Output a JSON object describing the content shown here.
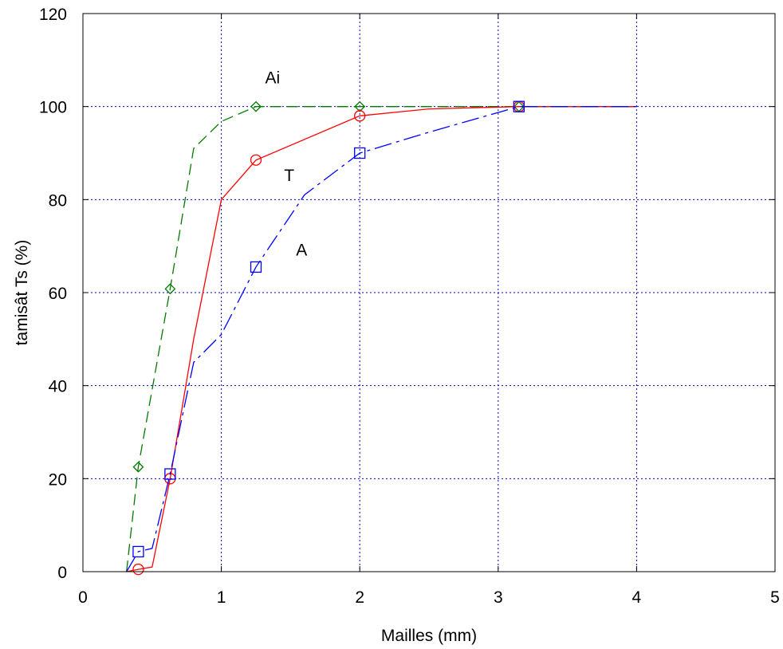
{
  "chart_data": {
    "type": "line",
    "title": "",
    "xlabel": "Mailles (mm)",
    "ylabel": "tamisât Ts (%)",
    "xlim": [
      0,
      5
    ],
    "ylim": [
      0,
      120
    ],
    "xticks": [
      "0",
      "1",
      "2",
      "3",
      "4",
      "5"
    ],
    "yticks": [
      "0",
      "20",
      "40",
      "60",
      "80",
      "100",
      "120"
    ],
    "grid": true,
    "series": [
      {
        "name": "Ai",
        "color": "#007a00",
        "dash": "14,7",
        "marker": "diamond",
        "line": [
          [
            0.315,
            0
          ],
          [
            0.4,
            22.5
          ],
          [
            0.63,
            60.8
          ],
          [
            0.8,
            91
          ],
          [
            1.0,
            96.8
          ],
          [
            1.25,
            100
          ],
          [
            2.0,
            100
          ],
          [
            3.15,
            100
          ],
          [
            4.0,
            100
          ]
        ],
        "markers": [
          [
            0.4,
            22.5
          ],
          [
            0.63,
            60.8
          ],
          [
            1.25,
            100
          ],
          [
            2.0,
            100
          ],
          [
            3.15,
            100
          ]
        ]
      },
      {
        "name": "T",
        "color": "#ff0000",
        "dash": "",
        "marker": "circle",
        "line": [
          [
            0.315,
            0
          ],
          [
            0.4,
            0.5
          ],
          [
            0.5,
            1
          ],
          [
            0.63,
            20
          ],
          [
            0.8,
            50
          ],
          [
            1.0,
            80
          ],
          [
            1.25,
            88.5
          ],
          [
            2.0,
            98
          ],
          [
            2.5,
            99.5
          ],
          [
            3.15,
            100
          ],
          [
            4.0,
            100
          ]
        ],
        "markers": [
          [
            0.4,
            0.5
          ],
          [
            0.63,
            20
          ],
          [
            1.25,
            88.5
          ],
          [
            2.0,
            98
          ],
          [
            3.15,
            100
          ]
        ]
      },
      {
        "name": "A",
        "color": "#0000ff",
        "dash": "22,6,4,6",
        "marker": "square",
        "line": [
          [
            0.315,
            0
          ],
          [
            0.4,
            4.3
          ],
          [
            0.5,
            5
          ],
          [
            0.63,
            21
          ],
          [
            0.8,
            45
          ],
          [
            1.0,
            51
          ],
          [
            1.25,
            65.5
          ],
          [
            1.6,
            81
          ],
          [
            2.0,
            90
          ],
          [
            2.5,
            94.5
          ],
          [
            3.15,
            100
          ],
          [
            4.0,
            100
          ]
        ],
        "markers": [
          [
            0.4,
            4.3
          ],
          [
            0.63,
            21
          ],
          [
            1.25,
            65.5
          ],
          [
            2.0,
            90
          ],
          [
            3.15,
            100
          ]
        ]
      }
    ],
    "annotations": [
      {
        "text": "Ai",
        "x": 1.37,
        "y": 105
      },
      {
        "text": "T",
        "x": 1.49,
        "y": 84
      },
      {
        "text": "A",
        "x": 1.58,
        "y": 68
      }
    ]
  }
}
